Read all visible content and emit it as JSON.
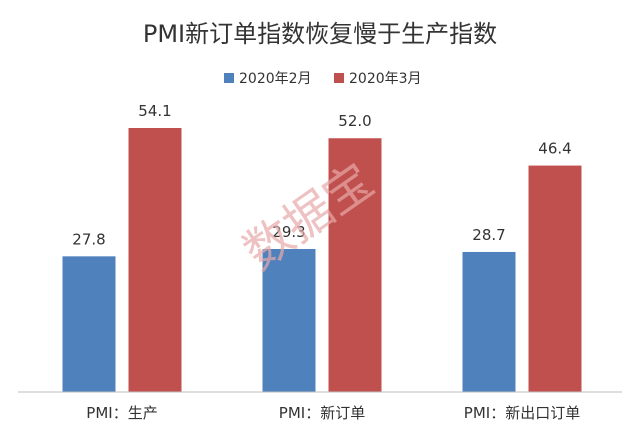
{
  "chart_data": {
    "type": "bar",
    "title": "PMI新订单指数恢复慢于生产指数",
    "categories": [
      "PMI：生产",
      "PMI：新订单",
      "PMI：新出口订单"
    ],
    "series": [
      {
        "name": "2020年2月",
        "values": [
          27.8,
          29.3,
          28.7
        ],
        "color": "#4f81bd"
      },
      {
        "name": "2020年3月",
        "values": [
          54.1,
          52.0,
          46.4
        ],
        "color": "#c0504d"
      }
    ],
    "data_labels": [
      [
        "27.8",
        "29.3",
        "28.7"
      ],
      [
        "54.1",
        "52.0",
        "46.4"
      ]
    ],
    "xlabel": "",
    "ylabel": "",
    "ylim": [
      0,
      60
    ],
    "grid": false,
    "legend_position": "top"
  },
  "watermark": "数据宝"
}
